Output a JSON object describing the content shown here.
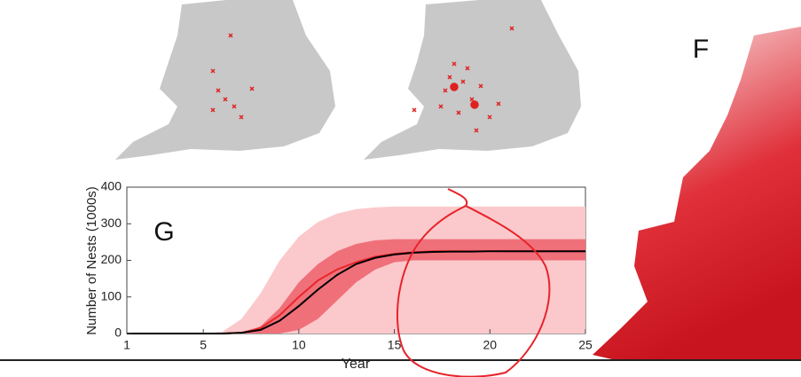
{
  "figure_labels": [
    "F"
  ],
  "chart_data": {
    "type": "line",
    "annotation": "G",
    "xlabel": "Year",
    "ylabel": "Number of Nests (1000s)",
    "x": [
      1,
      2,
      3,
      4,
      5,
      6,
      7,
      8,
      9,
      10,
      11,
      12,
      13,
      14,
      15,
      16,
      17,
      18,
      19,
      20,
      21,
      22,
      23,
      24,
      25
    ],
    "xlim": [
      1,
      25
    ],
    "xticks": [
      1,
      5,
      10,
      15,
      20,
      25
    ],
    "ylim": [
      0,
      400
    ],
    "yticks": [
      0,
      100,
      200,
      300,
      400
    ],
    "bands": [
      {
        "color": "#fbc9cb",
        "upper": [
          0,
          0,
          0,
          0,
          0,
          5,
          40,
          110,
          200,
          265,
          305,
          328,
          340,
          345,
          347,
          347,
          347,
          347,
          347,
          347,
          347,
          347,
          347,
          347,
          347
        ],
        "lower": [
          0,
          0,
          0,
          0,
          0,
          0,
          0,
          0,
          0,
          0,
          0,
          0,
          0,
          0,
          0,
          0,
          0,
          0,
          0,
          0,
          0,
          0,
          0,
          0,
          0
        ]
      },
      {
        "color": "#f0707a",
        "upper": [
          0,
          0,
          0,
          0,
          0,
          0,
          0,
          20,
          70,
          140,
          190,
          225,
          245,
          255,
          258,
          258,
          258,
          258,
          258,
          258,
          258,
          258,
          258,
          258,
          258
        ],
        "lower": [
          0,
          0,
          0,
          0,
          0,
          0,
          0,
          0,
          0,
          10,
          40,
          90,
          140,
          175,
          195,
          200,
          200,
          200,
          200,
          200,
          200,
          200,
          200,
          200,
          200
        ]
      }
    ],
    "series": [
      {
        "color": "#e8262a",
        "values": [
          0,
          0,
          0,
          0,
          0,
          0,
          2,
          15,
          50,
          100,
          145,
          175,
          195,
          210,
          218,
          222,
          225,
          225,
          225,
          225,
          225,
          225,
          225,
          225,
          225
        ]
      },
      {
        "color": "#000000",
        "values": [
          0,
          0,
          0,
          0,
          0,
          0,
          2,
          10,
          35,
          75,
          120,
          160,
          190,
          207,
          216,
          221,
          223,
          224,
          224,
          225,
          225,
          225,
          225,
          225,
          225
        ]
      }
    ]
  }
}
